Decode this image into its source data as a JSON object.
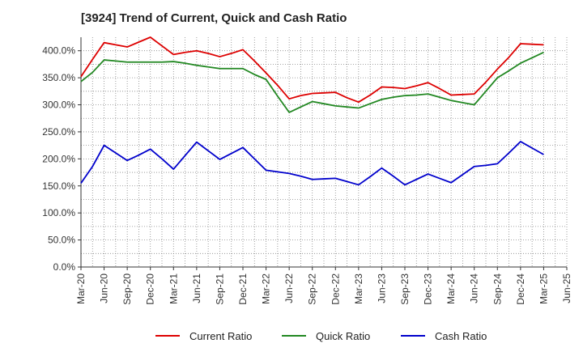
{
  "chart_data": {
    "type": "line",
    "title": "[3924]  Trend of Current, Quick and Cash Ratio",
    "xlabel": "",
    "ylabel": "",
    "ylim": [
      0,
      425
    ],
    "yticks": [
      0,
      50,
      100,
      150,
      200,
      250,
      300,
      350,
      400
    ],
    "ytick_labels": [
      "0.0%",
      "50.0%",
      "100.0%",
      "150.0%",
      "200.0%",
      "250.0%",
      "300.0%",
      "350.0%",
      "400.0%"
    ],
    "xtick_labels": [
      "Mar-20",
      "Jun-20",
      "Sep-20",
      "Dec-20",
      "Mar-21",
      "Jun-21",
      "Sep-21",
      "Dec-21",
      "Mar-22",
      "Jun-22",
      "Sep-22",
      "Dec-22",
      "Mar-23",
      "Jun-23",
      "Sep-23",
      "Dec-23",
      "Mar-24",
      "Jun-24",
      "Sep-24",
      "Dec-24",
      "Mar-25",
      "Jun-25"
    ],
    "grid": true,
    "legend_position": "bottom-center",
    "series": [
      {
        "name": "Current Ratio",
        "color": "#dd0000",
        "values": [
          352,
          384,
          415,
          411,
          407,
          416,
          425,
          409,
          393,
          397,
          400,
          395,
          389,
          395,
          402,
          381,
          359,
          336,
          311,
          317,
          321,
          322,
          323,
          313,
          305,
          318,
          333,
          332,
          330,
          335,
          341,
          330,
          318,
          319,
          320,
          342,
          366,
          388,
          413,
          412,
          411
        ]
      },
      {
        "name": "Quick Ratio",
        "color": "#228822",
        "values": [
          343,
          360,
          383,
          381,
          379,
          379,
          379,
          379,
          380,
          377,
          373,
          370,
          367,
          367,
          367,
          356,
          347,
          316,
          286,
          296,
          306,
          302,
          298,
          296,
          294,
          302,
          310,
          314,
          317,
          318,
          320,
          314,
          308,
          304,
          300,
          325,
          350,
          363,
          377,
          387,
          397
        ]
      },
      {
        "name": "Cash Ratio",
        "color": "#0000cc",
        "values": [
          155,
          186,
          225,
          211,
          197,
          207,
          218,
          200,
          181,
          206,
          231,
          215,
          199,
          210,
          221,
          200,
          179,
          176,
          173,
          168,
          162,
          163,
          164,
          158,
          152,
          167,
          183,
          168,
          152,
          162,
          172,
          164,
          156,
          171,
          186,
          188,
          191,
          211,
          232,
          220,
          208
        ]
      }
    ]
  }
}
